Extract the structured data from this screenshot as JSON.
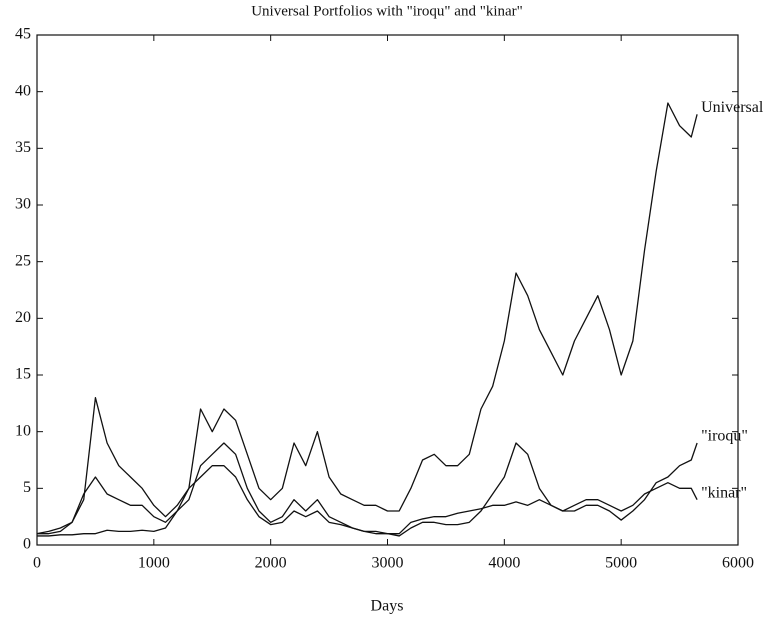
{
  "chart_data": {
    "type": "line",
    "title": "Universal Portfolios with \"iroqu\" and \"kinar\"",
    "xlabel": "Days",
    "x": [
      0,
      100,
      200,
      300,
      400,
      500,
      600,
      700,
      800,
      900,
      1000,
      1100,
      1200,
      1300,
      1400,
      1500,
      1600,
      1700,
      1800,
      1900,
      2000,
      2100,
      2200,
      2300,
      2400,
      2500,
      2600,
      2700,
      2800,
      2900,
      3000,
      3100,
      3200,
      3300,
      3400,
      3500,
      3600,
      3700,
      3800,
      3900,
      4000,
      4100,
      4200,
      4300,
      4400,
      4500,
      4600,
      4700,
      4800,
      4900,
      5000,
      5100,
      5200,
      5300,
      5400,
      5500,
      5600,
      5650
    ],
    "series": [
      {
        "name": "Universal",
        "color": "#111111",
        "values": [
          1,
          1.2,
          1.5,
          2,
          4,
          13,
          9,
          7,
          6,
          5,
          3.5,
          2.5,
          3.5,
          5,
          12,
          10,
          12,
          11,
          8,
          5,
          4,
          5,
          9,
          7,
          10,
          6,
          4.5,
          4,
          3.5,
          3.5,
          3,
          3,
          5,
          7.5,
          8,
          7,
          7,
          8,
          12,
          14,
          18,
          24,
          22,
          19,
          17,
          15,
          18,
          20,
          22,
          19,
          15,
          18,
          26,
          33,
          39,
          37,
          36,
          38
        ]
      },
      {
        "name": "\"iroqu\"",
        "color": "#111111",
        "values": [
          1,
          1,
          1.2,
          2,
          4.5,
          6,
          4.5,
          4,
          3.5,
          3.5,
          2.5,
          2,
          3,
          4,
          7,
          8,
          9,
          8,
          5,
          3,
          2,
          2.5,
          4,
          3,
          4,
          2.5,
          2,
          1.5,
          1.2,
          1.2,
          1,
          0.8,
          1.5,
          2,
          2,
          1.8,
          1.8,
          2,
          3,
          4.5,
          6,
          9,
          8,
          5,
          3.5,
          3,
          3,
          3.5,
          3.5,
          3,
          2.2,
          3,
          4,
          5.5,
          6,
          7,
          7.5,
          9
        ]
      },
      {
        "name": "\"kinar\"",
        "color": "#111111",
        "values": [
          0.8,
          0.8,
          0.9,
          0.9,
          1,
          1,
          1.3,
          1.2,
          1.2,
          1.3,
          1.2,
          1.5,
          3,
          5,
          6,
          7,
          7,
          6,
          4,
          2.5,
          1.8,
          2,
          3,
          2.5,
          3,
          2,
          1.8,
          1.5,
          1.2,
          1,
          1,
          1,
          2,
          2.3,
          2.5,
          2.5,
          2.8,
          3,
          3.2,
          3.5,
          3.5,
          3.8,
          3.5,
          4,
          3.5,
          3,
          3.5,
          4,
          4,
          3.5,
          3,
          3.5,
          4.5,
          5,
          5.5,
          5,
          5,
          4
        ]
      }
    ],
    "xlim": [
      0,
      6000
    ],
    "xticks": [
      0,
      1000,
      2000,
      3000,
      4000,
      5000,
      6000
    ],
    "ylim": [
      0,
      45
    ],
    "yticks": [
      0,
      5,
      10,
      15,
      20,
      25,
      30,
      35,
      40,
      45
    ]
  }
}
